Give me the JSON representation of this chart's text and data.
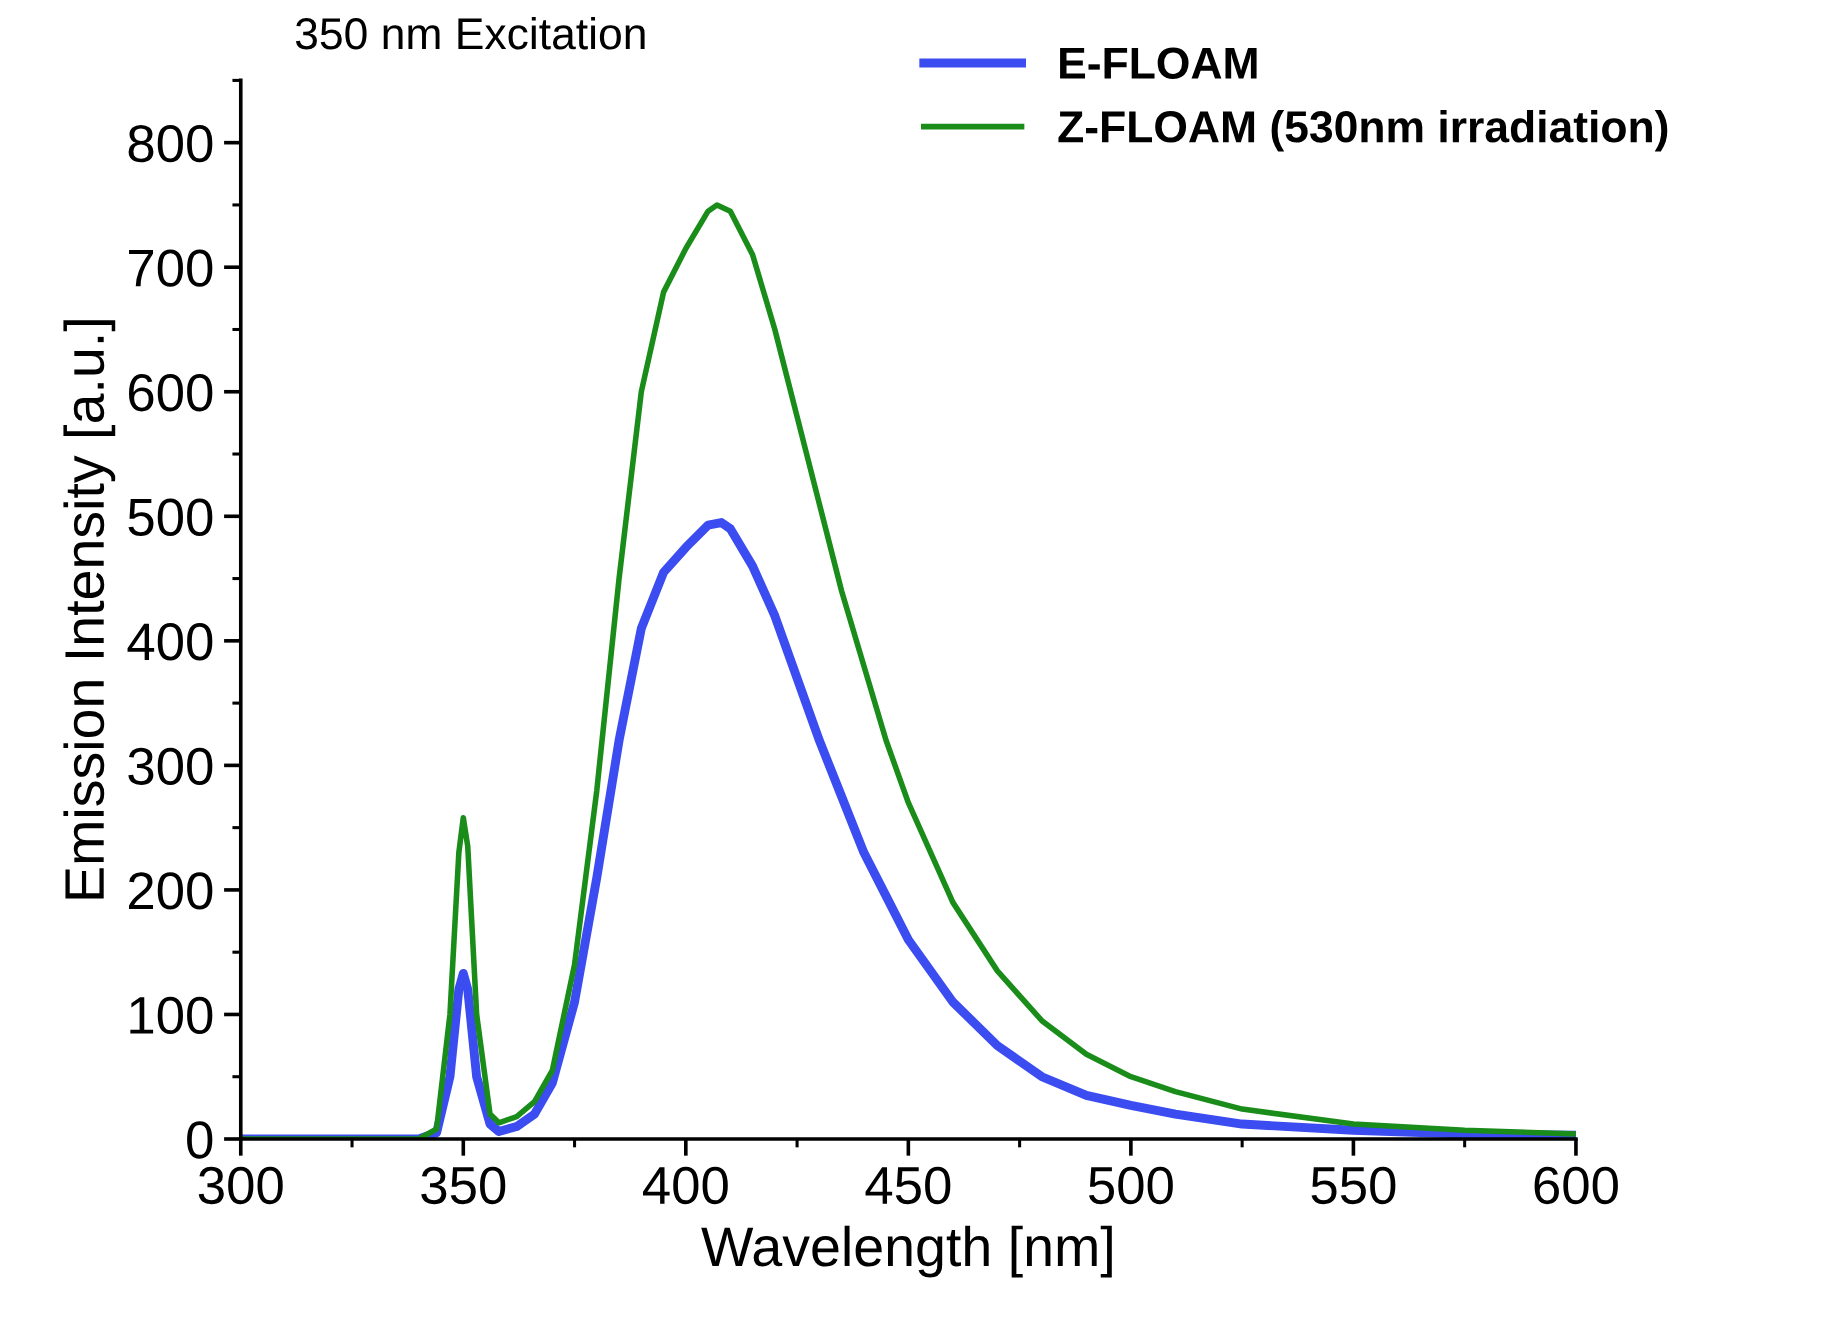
{
  "chart_data": {
    "type": "line",
    "xlabel": "Wavelength [nm]",
    "ylabel": "Emission Intensity [a.u.]",
    "annotations": [
      "350 nm Excitation"
    ],
    "xlim": [
      300,
      600
    ],
    "xticks": [
      300,
      350,
      400,
      450,
      500,
      550,
      600
    ],
    "ylim": [
      0,
      850
    ],
    "yticks": [
      0,
      100,
      200,
      300,
      400,
      500,
      600,
      700,
      800
    ],
    "grid": false,
    "legend": "top right",
    "marker": "none",
    "line_style": "solid",
    "series": [
      {
        "name": "E-FLOAM",
        "color": "#3b4cf0",
        "x": [
          300,
          340,
          344,
          347,
          349,
          350,
          351,
          353,
          356,
          358,
          362,
          366,
          370,
          375,
          380,
          385,
          390,
          395,
          400,
          405,
          408,
          410,
          415,
          420,
          425,
          430,
          435,
          440,
          445,
          450,
          460,
          470,
          480,
          490,
          500,
          510,
          525,
          550,
          575,
          600
        ],
        "values": [
          0,
          0,
          5,
          50,
          120,
          133,
          120,
          50,
          12,
          6,
          10,
          20,
          45,
          110,
          210,
          320,
          410,
          455,
          475,
          493,
          495,
          490,
          460,
          420,
          370,
          320,
          275,
          230,
          195,
          160,
          110,
          75,
          50,
          35,
          27,
          20,
          12,
          7,
          4,
          3
        ]
      },
      {
        "name": "Z-FLOAM (530nm irradiation)",
        "color": "#1a8c1a",
        "x": [
          300,
          340,
          344,
          347,
          349,
          350,
          351,
          353,
          356,
          358,
          362,
          366,
          370,
          375,
          380,
          385,
          390,
          395,
          400,
          405,
          407,
          410,
          415,
          420,
          425,
          430,
          435,
          440,
          445,
          450,
          460,
          470,
          480,
          490,
          500,
          510,
          525,
          550,
          575,
          600
        ],
        "values": [
          0,
          0,
          8,
          100,
          230,
          258,
          235,
          100,
          20,
          13,
          18,
          30,
          55,
          140,
          280,
          450,
          600,
          680,
          715,
          745,
          750,
          745,
          710,
          650,
          580,
          510,
          440,
          380,
          320,
          270,
          190,
          135,
          95,
          68,
          50,
          38,
          24,
          12,
          7,
          4
        ]
      }
    ]
  }
}
